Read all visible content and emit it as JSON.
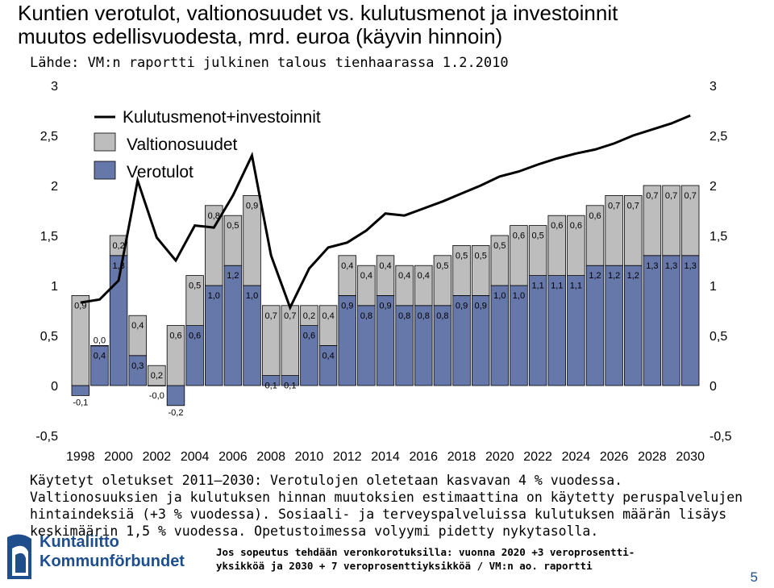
{
  "title_line1": "Kuntien verotulot, valtionosuudet vs. kulutusmenot ja investoinnit",
  "title_line2": "muutos edellisvuodesta, mrd. euroa (käyvin hinnoin)",
  "source": "Lähde: VM:n raportti julkinen talous tienhaarassa 1.2.2010",
  "notes": [
    "Käytetyt oletukset 2011–2030: Verotulojen oletetaan kasvavan 4 % vuodessa.",
    "Valtionosuuksien ja kulutuksen hinnan muutoksien estimaattina on käytetty peruspalvelujen",
    "hintaindeksiä (+3 % vuodessa). Sosiaali- ja terveyspalveluissa kulutuksen määrän lisäys",
    "keskimäärin 1,5 % vuodessa. Opetustoimessa volyymi pidetty nykytasolla."
  ],
  "footer_note": [
    "Jos sopeutus tehdään veronkorotuksilla: vuonna 2020 +3 veroprosentti-",
    "yksikköä ja 2030 + 7 veroprosenttiyksikköä / VM:n ao. raportti"
  ],
  "logo": {
    "line1": "Kuntaliitto",
    "line2": "Kommunförbundet"
  },
  "page_number": "5",
  "colors": {
    "verotulot": "#6677aa",
    "valtionosuudet": "#bdbdbd",
    "line": "#000000"
  },
  "chart_data": {
    "type": "bar",
    "stacked": true,
    "categories": [
      1998,
      1999,
      2000,
      2001,
      2002,
      2003,
      2004,
      2005,
      2006,
      2007,
      2008,
      2009,
      2010,
      2011,
      2012,
      2013,
      2014,
      2015,
      2016,
      2017,
      2018,
      2019,
      2020,
      2021,
      2022,
      2023,
      2024,
      2025,
      2026,
      2027,
      2028,
      2029,
      2030
    ],
    "x_tick_labels": [
      "1998",
      "2000",
      "2002",
      "2004",
      "2006",
      "2008",
      "2010",
      "2012",
      "2014",
      "2016",
      "2018",
      "2020",
      "2022",
      "2024",
      "2026",
      "2028",
      "2030"
    ],
    "y_ticks_left": [
      "-0,5",
      "0",
      "0,5",
      "1",
      "1,5",
      "2",
      "2,5",
      "3"
    ],
    "y_ticks_right": [
      "-0,5",
      "0",
      "0,5",
      "1",
      "1,5",
      "2",
      "2,5",
      "3"
    ],
    "ylim": [
      -0.5,
      3
    ],
    "series": [
      {
        "name": "Verotulot",
        "values": [
          -0.1,
          0.4,
          1.3,
          0.3,
          -0.0,
          -0.2,
          0.6,
          1.0,
          1.2,
          1.0,
          0.1,
          0.1,
          0.6,
          0.4,
          0.9,
          0.8,
          0.9,
          0.8,
          0.8,
          0.8,
          0.9,
          0.9,
          1.0,
          1.0,
          1.1,
          1.1,
          1.1,
          1.2,
          1.2,
          1.2,
          1.3,
          1.3,
          1.3
        ],
        "labels": [
          "-0,1",
          "0,4",
          "1,3",
          "0,3",
          "-0,0",
          "-0,2",
          "0,6",
          "1,0",
          "1,2",
          "1,0",
          "0,1",
          "0,1",
          "0,6",
          "0,4",
          "0,9",
          "0,8",
          "0,9",
          "0,8",
          "0,8",
          "0,8",
          "0,9",
          "0,9",
          "1,0",
          "1,0",
          "1,1",
          "1,1",
          "1,1",
          "1,2",
          "1,2",
          "1,2",
          "1,3",
          "1,3",
          "1,3"
        ]
      },
      {
        "name": "Valtionosuudet",
        "values": [
          0.9,
          0.0,
          0.2,
          0.4,
          0.2,
          0.6,
          0.5,
          0.8,
          0.5,
          0.9,
          0.7,
          0.7,
          0.2,
          0.4,
          0.4,
          0.4,
          0.4,
          0.4,
          0.4,
          0.5,
          0.5,
          0.5,
          0.5,
          0.6,
          0.5,
          0.6,
          0.6,
          0.6,
          0.7,
          0.7,
          0.7,
          0.7,
          0.7
        ],
        "labels": [
          "0,9",
          "0,0",
          "0,2",
          "0,4",
          "0,2",
          "0,6",
          "0,5",
          "0,8",
          "0,5",
          "0,9",
          "0,7",
          "0,7",
          "0,2",
          "0,4",
          "0,4",
          "0,4",
          "0,4",
          "0,4",
          "0,4",
          "0,5",
          "0,5",
          "0,5",
          "0,5",
          "0,6",
          "0,5",
          "0,6",
          "0,6",
          "0,6",
          "0,7",
          "0,7",
          "0,7",
          "0,7",
          "0,7"
        ]
      },
      {
        "name": "Kulutusmenot+investoinnit",
        "type": "line",
        "values": [
          0.83,
          0.86,
          1.05,
          2.05,
          1.48,
          1.25,
          1.6,
          1.58,
          1.9,
          2.3,
          1.3,
          0.78,
          1.17,
          1.38,
          1.43,
          1.55,
          1.72,
          1.7,
          1.77,
          1.84,
          1.92,
          2.0,
          2.09,
          2.14,
          2.21,
          2.27,
          2.32,
          2.36,
          2.42,
          2.5,
          2.56,
          2.62,
          2.7
        ]
      }
    ],
    "legend": {
      "position": "top-left",
      "items": [
        "Kulutusmenot+investoinnit",
        "Valtionosuudet",
        "Verotulot"
      ]
    }
  }
}
